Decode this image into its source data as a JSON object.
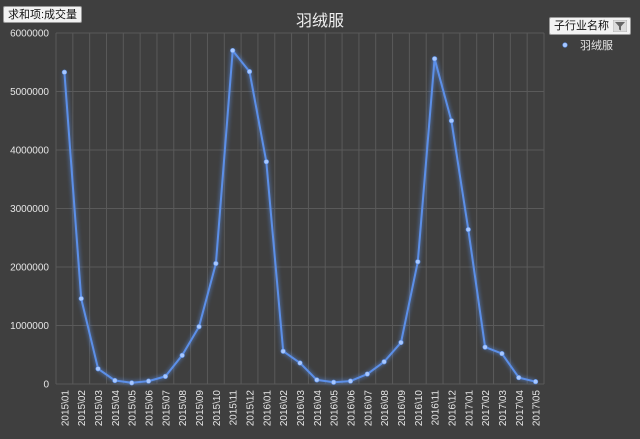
{
  "pivot": {
    "value_field": "求和项:成交量",
    "legend_field": "子行业名称"
  },
  "colors": {
    "series": "#5b8fe8",
    "marker": "#a8c8ff",
    "target_line": "#e8731e"
  },
  "chart_data": {
    "type": "line",
    "title": "羽绒服",
    "xlabel": "",
    "ylabel": "",
    "legend": "top-right",
    "grid": true,
    "ylim": [
      0,
      6000000
    ],
    "yticks": [
      0,
      1000000,
      2000000,
      3000000,
      4000000,
      5000000,
      6000000
    ],
    "categories": [
      "2015\\01",
      "2015\\02",
      "2015\\03",
      "2015\\04",
      "2015\\05",
      "2015\\06",
      "2015\\07",
      "2015\\08",
      "2015\\09",
      "2015\\10",
      "2015\\11",
      "2015\\12",
      "2016\\01",
      "2016\\02",
      "2016\\03",
      "2016\\04",
      "2016\\05",
      "2016\\06",
      "2016\\07",
      "2016\\08",
      "2016\\09",
      "2016\\10",
      "2016\\11",
      "2016\\12",
      "2017\\01",
      "2017\\02",
      "2017\\03",
      "2017\\04",
      "2017\\05"
    ],
    "series": [
      {
        "name": "羽绒服",
        "values": [
          5330000,
          1460000,
          260000,
          60000,
          20000,
          50000,
          130000,
          490000,
          980000,
          2060000,
          5700000,
          5340000,
          3800000,
          560000,
          360000,
          70000,
          30000,
          50000,
          170000,
          380000,
          710000,
          2090000,
          5560000,
          4500000,
          2640000,
          630000,
          520000,
          110000,
          40000
        ]
      }
    ],
    "reference_line": 5700000
  }
}
